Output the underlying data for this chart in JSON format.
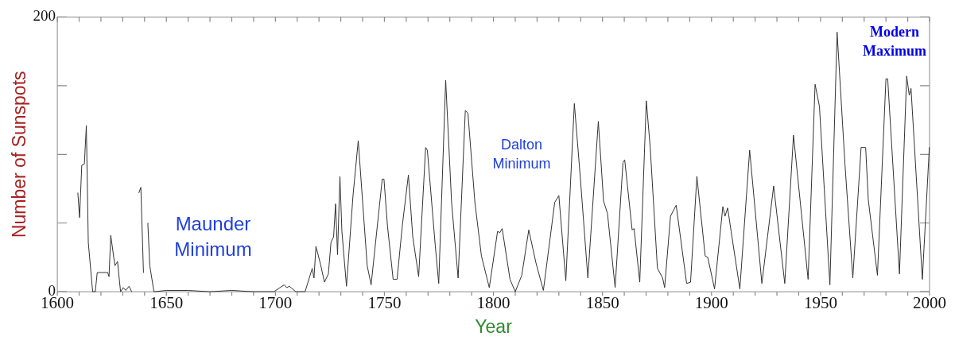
{
  "chart_data": {
    "type": "line",
    "xlabel": "Year",
    "ylabel": "Number of Sunspots",
    "annotations": [
      "Maunder Minimum",
      "Dalton Minimum",
      "Modern Maximum"
    ],
    "xlim": [
      1600,
      2000
    ],
    "ylim": [
      0,
      200
    ],
    "xticks": [
      1600,
      {
        "value": 1610,
        "label": null
      },
      {
        "value": 1620,
        "label": null
      },
      {
        "value": 1630,
        "label": null
      },
      {
        "value": 1640,
        "label": null
      },
      1650,
      {
        "value": 1660,
        "label": null
      },
      {
        "value": 1670,
        "label": null
      },
      {
        "value": 1680,
        "label": null
      },
      {
        "value": 1690,
        "label": null
      },
      1700,
      {
        "value": 1710,
        "label": null
      },
      {
        "value": 1720,
        "label": null
      },
      {
        "value": 1730,
        "label": null
      },
      {
        "value": 1740,
        "label": null
      },
      1750,
      {
        "value": 1760,
        "label": null
      },
      {
        "value": 1770,
        "label": null
      },
      {
        "value": 1780,
        "label": null
      },
      {
        "value": 1790,
        "label": null
      },
      1800,
      {
        "value": 1810,
        "label": null
      },
      {
        "value": 1820,
        "label": null
      },
      {
        "value": 1830,
        "label": null
      },
      {
        "value": 1840,
        "label": null
      },
      1850,
      {
        "value": 1860,
        "label": null
      },
      {
        "value": 1870,
        "label": null
      },
      {
        "value": 1880,
        "label": null
      },
      {
        "value": 1890,
        "label": null
      },
      1900,
      {
        "value": 1910,
        "label": null
      },
      {
        "value": 1920,
        "label": null
      },
      {
        "value": 1930,
        "label": null
      },
      {
        "value": 1940,
        "label": null
      },
      1950,
      {
        "value": 1960,
        "label": null
      },
      {
        "value": 1970,
        "label": null
      },
      {
        "value": 1980,
        "label": null
      },
      {
        "value": 1990,
        "label": null
      },
      2000
    ],
    "yticks": [
      0,
      {
        "value": 50,
        "label": null
      },
      {
        "value": 100,
        "label": null
      },
      {
        "value": 150,
        "label": null
      },
      200
    ],
    "grid": false,
    "legend": false,
    "marker": "none",
    "line_style": "solid",
    "series": [
      {
        "color": "#333333",
        "x": [
          1609.4,
          1610.2,
          1611.2,
          1612.4,
          1613.3,
          1614.2,
          1616.2,
          1617.4,
          1618.3,
          1623.1,
          1623.7,
          1624.5,
          1626.4,
          1627.6,
          1629,
          1630.2,
          1631.4,
          1632.9,
          1634.1,
          1635.5,
          1637.4,
          1638.3,
          1639.5,
          1640.5,
          1641.5,
          1642.4,
          1644.3,
          1650,
          1660,
          1670,
          1680,
          1690,
          1699.3,
          1704,
          1705.2,
          1706.4,
          1709.4,
          1713.6,
          1716.9,
          1717.7,
          1718.6,
          1720.7,
          1722.5,
          1724.3,
          1725.5,
          1726.7,
          1727.6,
          1728.5,
          1729.6,
          1730.5,
          1732.6,
          1735.6,
          1738,
          1742.1,
          1743.9,
          1749,
          1749.8,
          1751.4,
          1754,
          1755.8,
          1758.2,
          1761,
          1763,
          1765.7,
          1768.9,
          1769.7,
          1773.3,
          1774.9,
          1778.1,
          1780.8,
          1783.8,
          1787.1,
          1788.3,
          1791.5,
          1794.5,
          1798.1,
          1801.9,
          1802.9,
          1804,
          1807.6,
          1810,
          1813,
          1816.2,
          1819.5,
          1822.9,
          1828.1,
          1830,
          1833.2,
          1837.1,
          1839.8,
          1843.3,
          1848.1,
          1850.5,
          1852.3,
          1855.8,
          1859.4,
          1860.2,
          1863.6,
          1864.5,
          1867.1,
          1870.1,
          1871.9,
          1875.2,
          1877.6,
          1878.5,
          1881.2,
          1883.8,
          1888.6,
          1890.4,
          1893.3,
          1897.1,
          1898.3,
          1901.4,
          1905.2,
          1906.2,
          1907.4,
          1909,
          1913,
          1917.5,
          1923.1,
          1928.5,
          1933.6,
          1937.6,
          1944.3,
          1947.5,
          1949.5,
          1954.3,
          1957.6,
          1961.2,
          1964.8,
          1968.6,
          1970.7,
          1971.9,
          1976.1,
          1980,
          1980.8,
          1986.2,
          1989.5,
          1990.7,
          1991.5,
          1996.7,
          1999.9
        ],
        "values": [
          72,
          54,
          92,
          93,
          121,
          36,
          0,
          0,
          14,
          14,
          11,
          41,
          19,
          22,
          0,
          3,
          1,
          4,
          0,
          null,
          72,
          76,
          14,
          null,
          50,
          19,
          0,
          1,
          1,
          0,
          1,
          0,
          0,
          5,
          3,
          4,
          0,
          0,
          17,
          10,
          33,
          20,
          7,
          13,
          36,
          40,
          64,
          27,
          84,
          44,
          4,
          70,
          110,
          19,
          5,
          82,
          82,
          48,
          9,
          9,
          48,
          85,
          40,
          11,
          105,
          103,
          34,
          6,
          154,
          65,
          10,
          132,
          130,
          65,
          26,
          3,
          44,
          43,
          46,
          9,
          0,
          12,
          45,
          21,
          1,
          65,
          70,
          8,
          137,
          84,
          10,
          124,
          66,
          57,
          3,
          94,
          96,
          45,
          46,
          7,
          139,
          105,
          17,
          10,
          3,
          55,
          63,
          6,
          7,
          84,
          26,
          25,
          2,
          62,
          55,
          61,
          44,
          2,
          103,
          6,
          77,
          6,
          114,
          9,
          151,
          135,
          5,
          189,
          93,
          10,
          105,
          105,
          67,
          12,
          155,
          155,
          13,
          157,
          143,
          148,
          9,
          105
        ]
      }
    ]
  }
}
